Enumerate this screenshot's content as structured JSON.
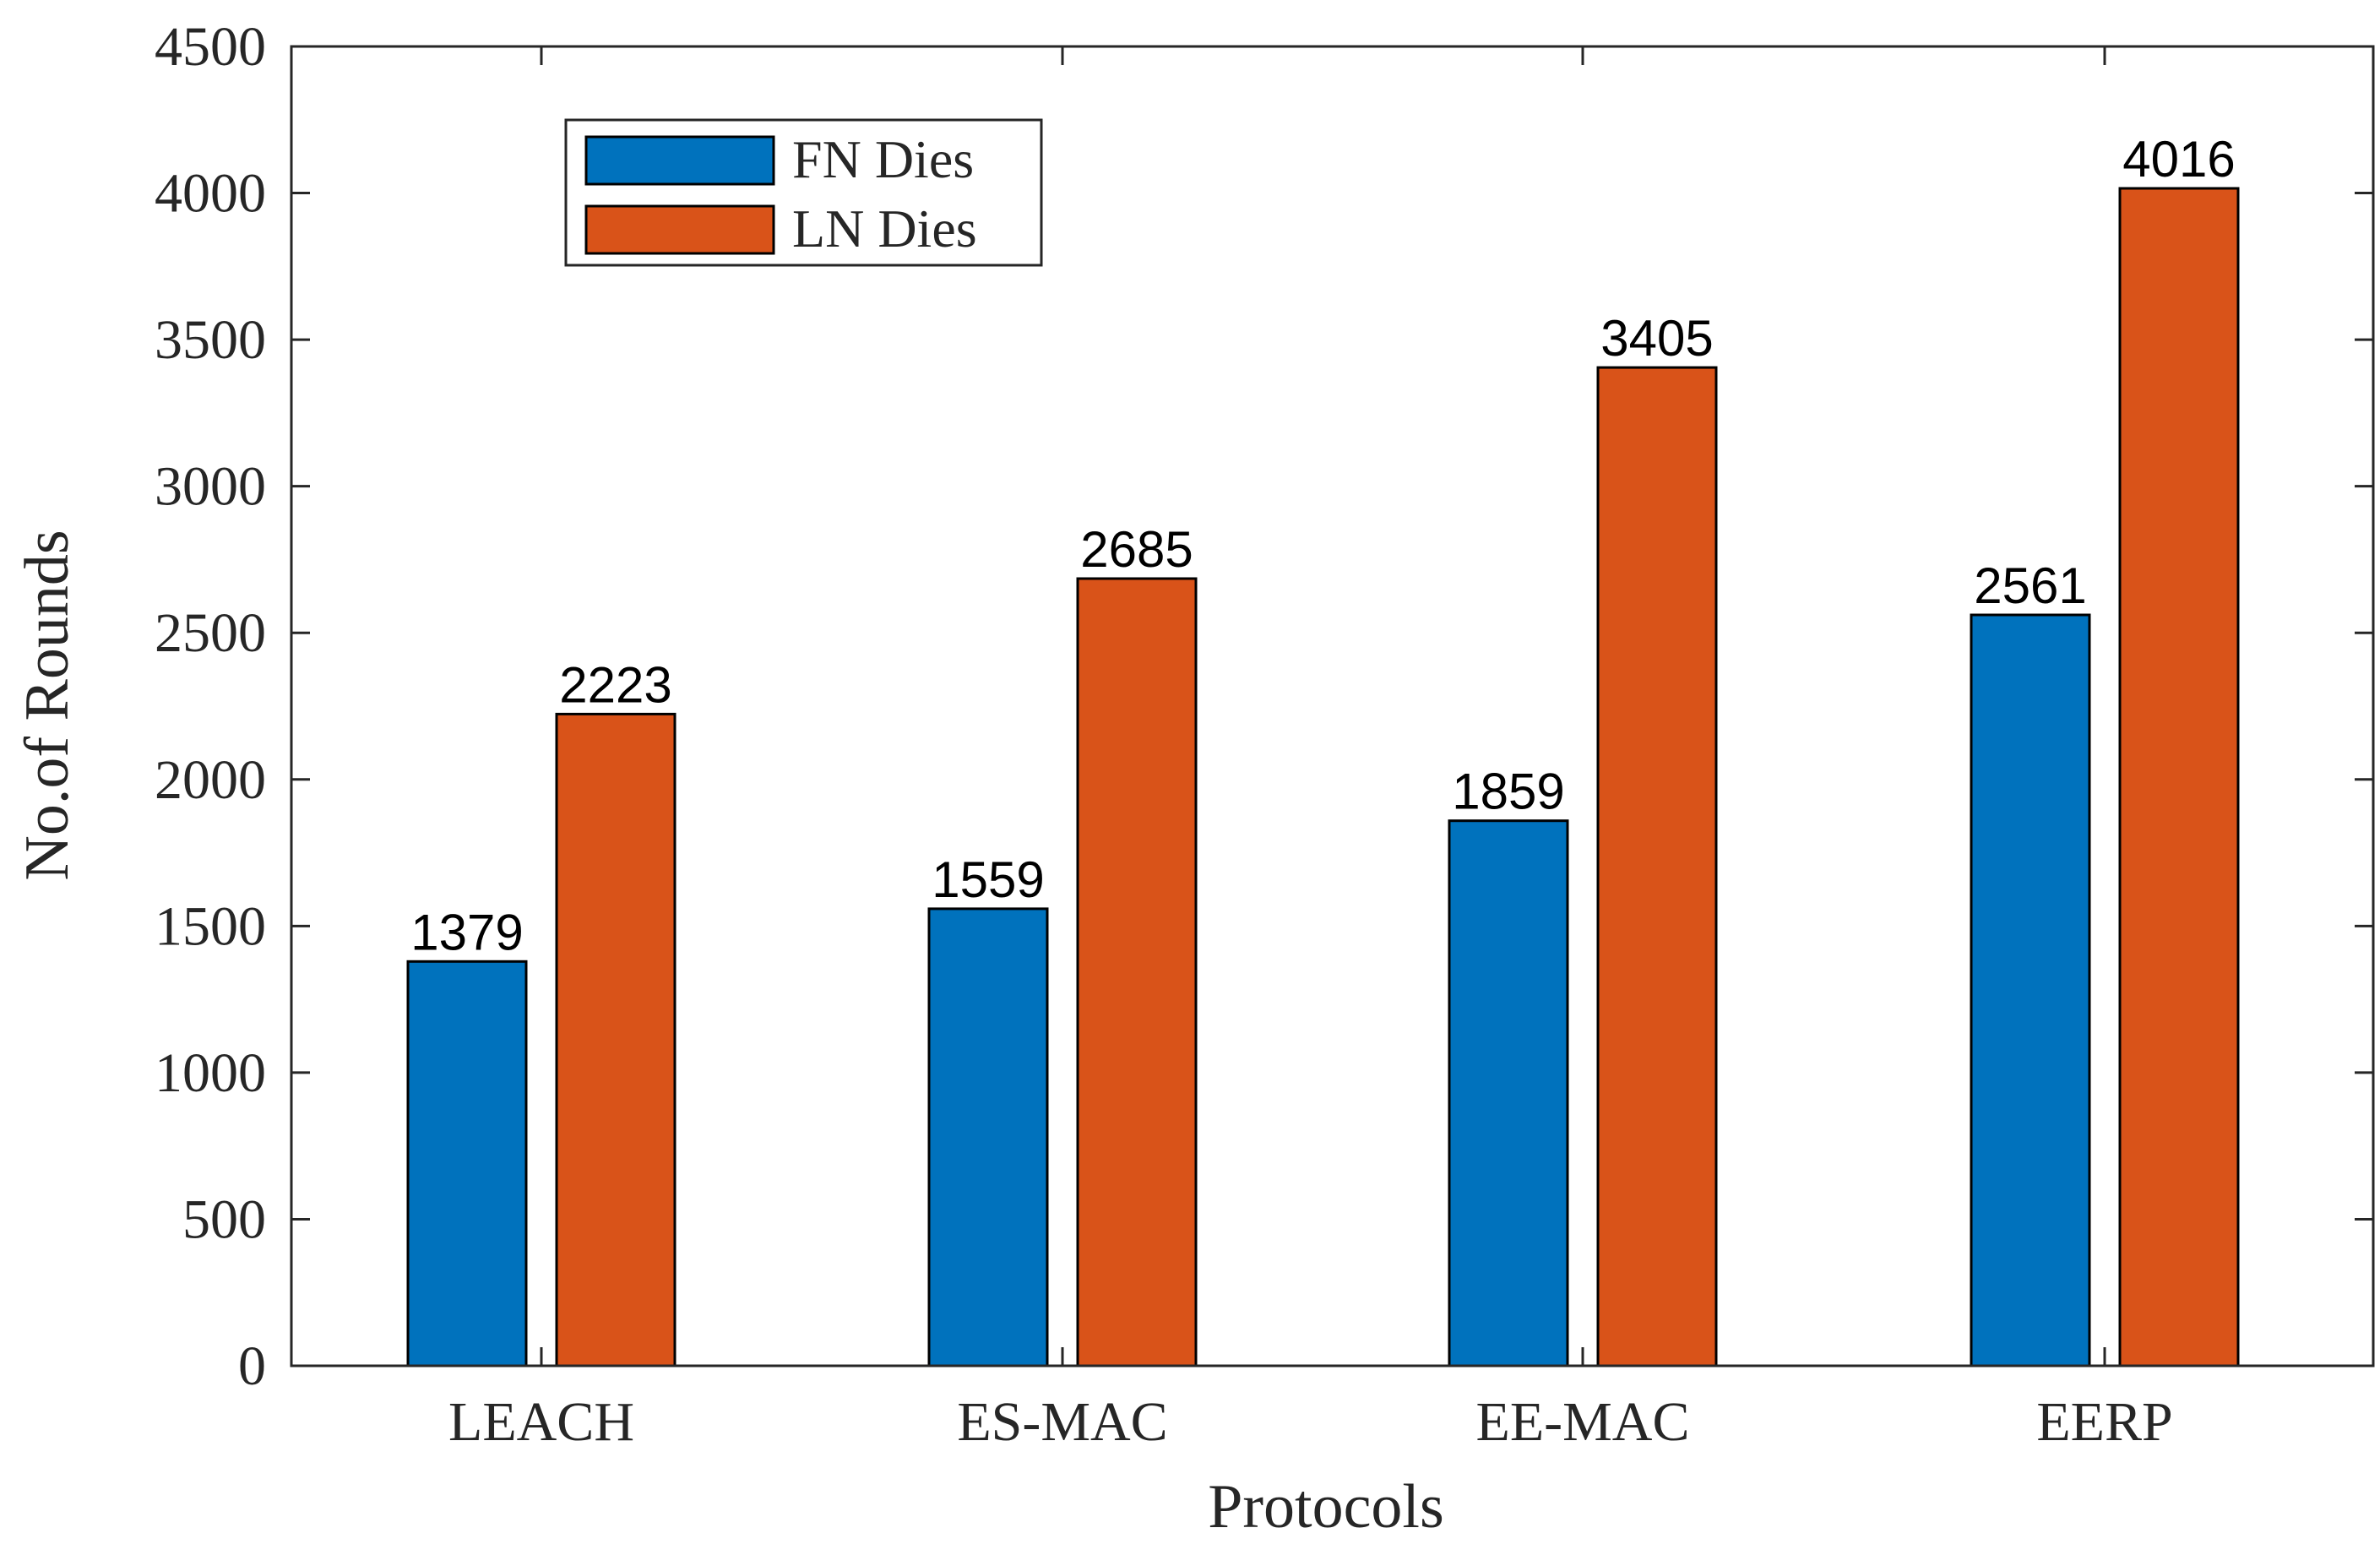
{
  "chart_data": {
    "type": "bar",
    "categories": [
      "LEACH",
      "ES-MAC",
      "EE-MAC",
      "EERP"
    ],
    "series": [
      {
        "name": "FN Dies",
        "values": [
          1379,
          1559,
          1859,
          2561
        ],
        "color": "#0072BD"
      },
      {
        "name": "LN Dies",
        "values": [
          2223,
          2685,
          3405,
          4016
        ],
        "color": "#D95319"
      }
    ],
    "data_labels": {
      "FN Dies": [
        "1379",
        "1559",
        "1859",
        "2561"
      ],
      "LN Dies": [
        "2223",
        "2685",
        "3405",
        "4016"
      ]
    },
    "xlabel": "Protocols",
    "ylabel": "No.of Rounds",
    "ylim": [
      0,
      4500
    ],
    "yticks": [
      0,
      500,
      1000,
      1500,
      2000,
      2500,
      3000,
      3500,
      4000,
      4500
    ],
    "ytick_labels": [
      "0",
      "500",
      "1000",
      "1500",
      "2000",
      "2500",
      "3000",
      "3500",
      "4000",
      "4500"
    ],
    "grid": false,
    "legend_position": "top-left",
    "bar_edge_color": "#000000",
    "axis_color": "#262626"
  }
}
